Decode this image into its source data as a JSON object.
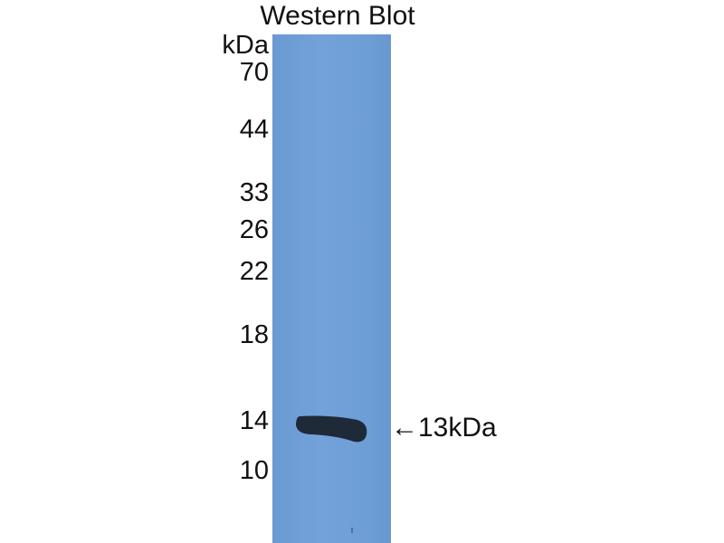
{
  "title": "Western Blot",
  "unit_label": "kDa",
  "markers": [
    "70",
    "44",
    "33",
    "26",
    "22",
    "18",
    "14",
    "10"
  ],
  "band_annotation": "←13kDa",
  "colors": {
    "membrane": "#6f9fd6",
    "band": "#1f2a38"
  }
}
